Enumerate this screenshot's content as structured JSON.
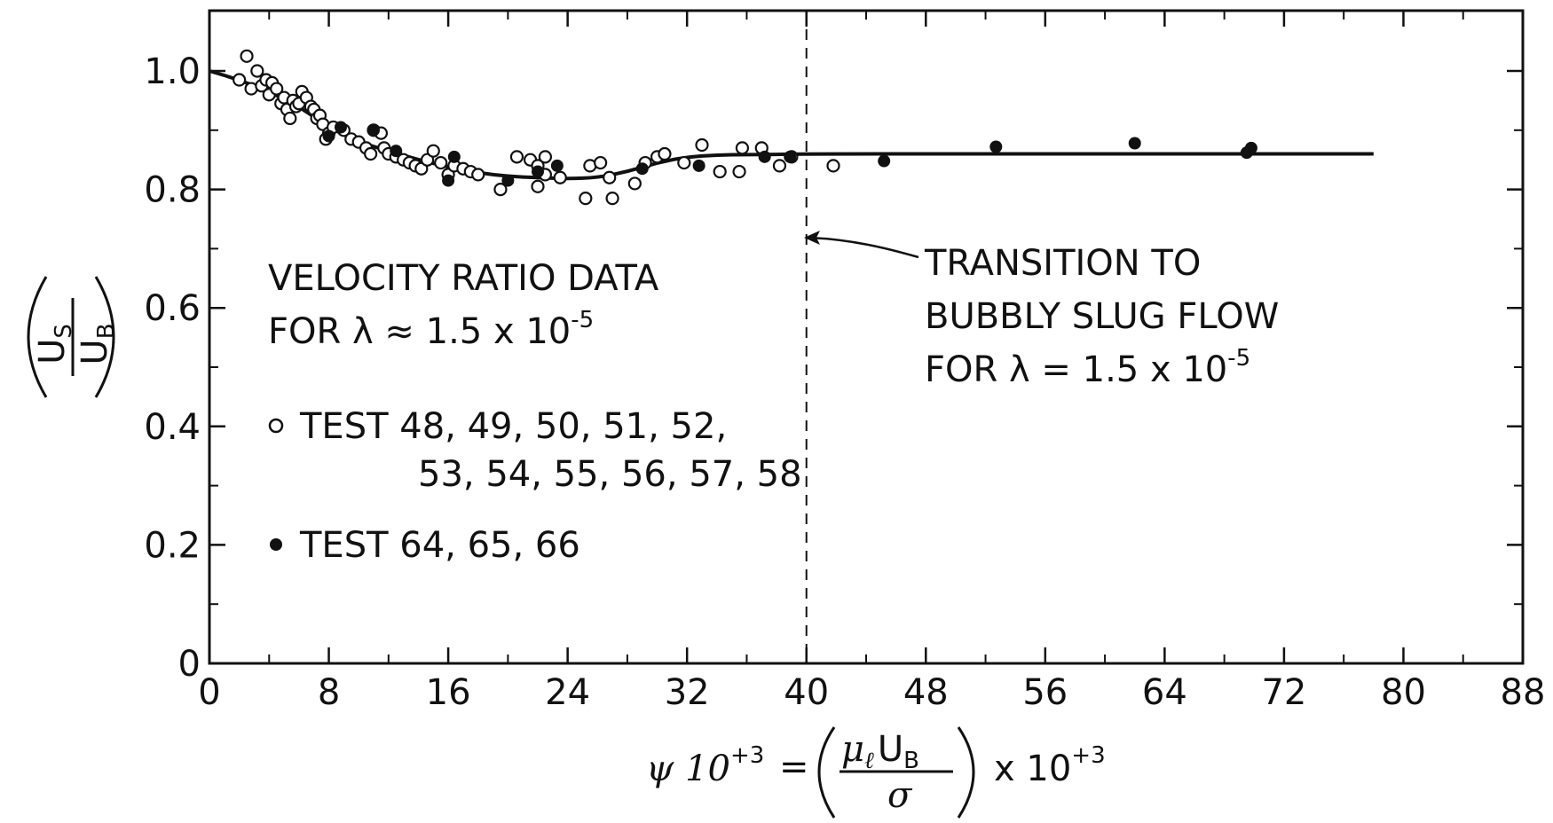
{
  "chart_data": {
    "type": "scatter",
    "xlim": [
      0,
      88
    ],
    "ylim": [
      0,
      1.0
    ],
    "x_ticks": [
      0,
      8,
      16,
      24,
      32,
      40,
      48,
      56,
      64,
      72,
      80,
      88
    ],
    "y_ticks": [
      0,
      0.2,
      0.4,
      0.6,
      0.8,
      1.0
    ],
    "x_tick_labels": [
      "0",
      "8",
      "16",
      "24",
      "32",
      "40",
      "48",
      "56",
      "64",
      "72",
      "80",
      "88"
    ],
    "y_tick_labels": [
      "0",
      "0.2",
      "0.4",
      "0.6",
      "0.8",
      "1.0"
    ],
    "grid": false,
    "ylabel": {
      "numerator": "U",
      "numerator_sub": "S",
      "denominator": "U",
      "denominator_sub": "B"
    },
    "xlabel": {
      "lhs": "ψ 10",
      "lhs_exp": "+3",
      "eq": "=",
      "frac_num": "μ",
      "frac_num_sub": "ℓ",
      "frac_num_b": "U",
      "frac_num_b_sub": "B",
      "frac_den": "σ",
      "rhs": "x 10",
      "rhs_exp": "+3"
    },
    "legend": {
      "title_line1": "VELOCITY RATIO DATA",
      "title_line2_pre": "FOR λ ≈ 1.5 x 10",
      "title_line2_exp": "-5",
      "open_label_line1": "TEST 48, 49, 50, 51, 52,",
      "open_label_line2": "53, 54, 55, 56, 57, 58",
      "filled_label": "TEST 64, 65, 66",
      "placement": "center-left"
    },
    "annotation": {
      "line1": "TRANSITION TO",
      "line2": "BUBBLY SLUG FLOW",
      "line3_pre": "FOR λ = 1.5 x 10",
      "line3_exp": "-5",
      "transition_x": 40,
      "arrow_y": 0.72
    },
    "series": [
      {
        "marker": "open-circle",
        "points": [
          [
            2.0,
            0.985
          ],
          [
            2.5,
            1.025
          ],
          [
            2.8,
            0.97
          ],
          [
            3.2,
            1.0
          ],
          [
            3.5,
            0.975
          ],
          [
            3.8,
            0.985
          ],
          [
            4.0,
            0.96
          ],
          [
            4.2,
            0.98
          ],
          [
            4.5,
            0.97
          ],
          [
            4.8,
            0.945
          ],
          [
            5.0,
            0.955
          ],
          [
            5.2,
            0.935
          ],
          [
            5.4,
            0.92
          ],
          [
            5.6,
            0.95
          ],
          [
            5.8,
            0.94
          ],
          [
            6.0,
            0.945
          ],
          [
            6.2,
            0.965
          ],
          [
            6.5,
            0.955
          ],
          [
            6.8,
            0.94
          ],
          [
            7.0,
            0.935
          ],
          [
            7.2,
            0.92
          ],
          [
            7.4,
            0.925
          ],
          [
            7.6,
            0.91
          ],
          [
            7.8,
            0.885
          ],
          [
            8.0,
            0.895
          ],
          [
            8.3,
            0.905
          ],
          [
            9.0,
            0.9
          ],
          [
            9.5,
            0.885
          ],
          [
            10.0,
            0.88
          ],
          [
            10.5,
            0.87
          ],
          [
            10.8,
            0.86
          ],
          [
            11.0,
            0.9
          ],
          [
            11.5,
            0.895
          ],
          [
            11.7,
            0.87
          ],
          [
            12.0,
            0.86
          ],
          [
            12.5,
            0.855
          ],
          [
            13.0,
            0.85
          ],
          [
            13.4,
            0.845
          ],
          [
            13.8,
            0.84
          ],
          [
            14.2,
            0.835
          ],
          [
            14.6,
            0.85
          ],
          [
            15.0,
            0.865
          ],
          [
            15.5,
            0.845
          ],
          [
            16.0,
            0.825
          ],
          [
            16.4,
            0.84
          ],
          [
            17.0,
            0.835
          ],
          [
            17.5,
            0.83
          ],
          [
            18.0,
            0.825
          ],
          [
            19.5,
            0.8
          ],
          [
            20.6,
            0.855
          ],
          [
            21.5,
            0.85
          ],
          [
            22.0,
            0.84
          ],
          [
            22.5,
            0.825
          ],
          [
            22.0,
            0.805
          ],
          [
            22.5,
            0.855
          ],
          [
            23.5,
            0.82
          ],
          [
            25.2,
            0.785
          ],
          [
            25.5,
            0.84
          ],
          [
            26.2,
            0.845
          ],
          [
            26.8,
            0.82
          ],
          [
            27.0,
            0.785
          ],
          [
            28.5,
            0.81
          ],
          [
            29.2,
            0.845
          ],
          [
            30.0,
            0.855
          ],
          [
            30.5,
            0.86
          ],
          [
            31.8,
            0.845
          ],
          [
            33.0,
            0.875
          ],
          [
            34.2,
            0.83
          ],
          [
            35.5,
            0.83
          ],
          [
            35.7,
            0.87
          ],
          [
            37.0,
            0.87
          ],
          [
            38.2,
            0.84
          ],
          [
            39.0,
            0.855
          ],
          [
            41.8,
            0.84
          ]
        ]
      },
      {
        "marker": "filled-circle",
        "points": [
          [
            8.0,
            0.89
          ],
          [
            8.8,
            0.905
          ],
          [
            11.0,
            0.9
          ],
          [
            12.5,
            0.865
          ],
          [
            16.0,
            0.815
          ],
          [
            16.4,
            0.855
          ],
          [
            20.0,
            0.815
          ],
          [
            22.0,
            0.83
          ],
          [
            23.3,
            0.84
          ],
          [
            29.0,
            0.835
          ],
          [
            32.8,
            0.84
          ],
          [
            37.2,
            0.855
          ],
          [
            38.9,
            0.855
          ],
          [
            45.2,
            0.848
          ],
          [
            52.7,
            0.872
          ],
          [
            62.0,
            0.878
          ],
          [
            69.5,
            0.862
          ],
          [
            69.8,
            0.87
          ]
        ]
      },
      {
        "marker": "line",
        "points": [
          [
            0,
            1.0
          ],
          [
            2,
            0.985
          ],
          [
            4,
            0.965
          ],
          [
            6,
            0.94
          ],
          [
            8,
            0.905
          ],
          [
            10,
            0.88
          ],
          [
            12,
            0.865
          ],
          [
            14,
            0.85
          ],
          [
            16,
            0.838
          ],
          [
            18,
            0.828
          ],
          [
            20,
            0.822
          ],
          [
            22,
            0.82
          ],
          [
            24,
            0.818
          ],
          [
            26,
            0.82
          ],
          [
            28,
            0.83
          ],
          [
            30,
            0.845
          ],
          [
            32,
            0.855
          ],
          [
            34,
            0.858
          ],
          [
            36,
            0.859
          ],
          [
            38,
            0.859
          ],
          [
            40,
            0.86
          ],
          [
            50,
            0.86
          ],
          [
            60,
            0.86
          ],
          [
            70,
            0.86
          ],
          [
            78,
            0.86
          ]
        ]
      }
    ]
  }
}
